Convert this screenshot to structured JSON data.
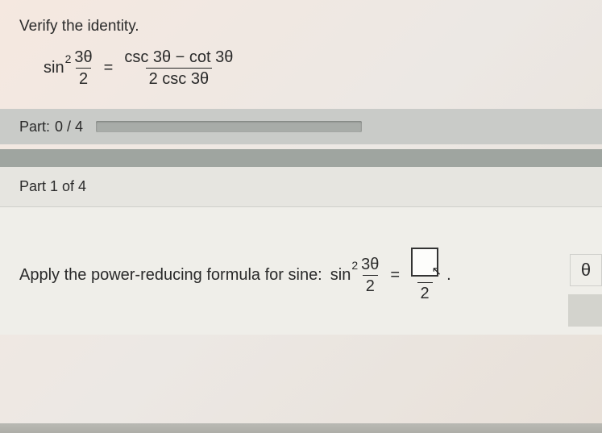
{
  "prompt": "Verify the identity.",
  "identity": {
    "lhs_prefix": "sin",
    "lhs_sup": "2",
    "lhs_frac_num": "3θ",
    "lhs_frac_den": "2",
    "eq": "=",
    "rhs_num": "csc 3θ − cot 3θ",
    "rhs_den": "2 csc 3θ"
  },
  "progress": {
    "label_prefix": "Part:",
    "current": "0",
    "sep": "/",
    "total": "4",
    "percent": 0
  },
  "part_header": "Part 1 of 4",
  "step": {
    "text": "Apply the power-reducing formula for sine:",
    "expr_prefix": "sin",
    "expr_sup": "2",
    "expr_frac_num": "3θ",
    "expr_frac_den": "2",
    "eq": "=",
    "answer_den": "2",
    "period": "."
  },
  "tool_button": "θ",
  "colors": {
    "bar": "#c9cbc8",
    "darkbar": "#9fa5a0",
    "body": "#efeee9"
  }
}
